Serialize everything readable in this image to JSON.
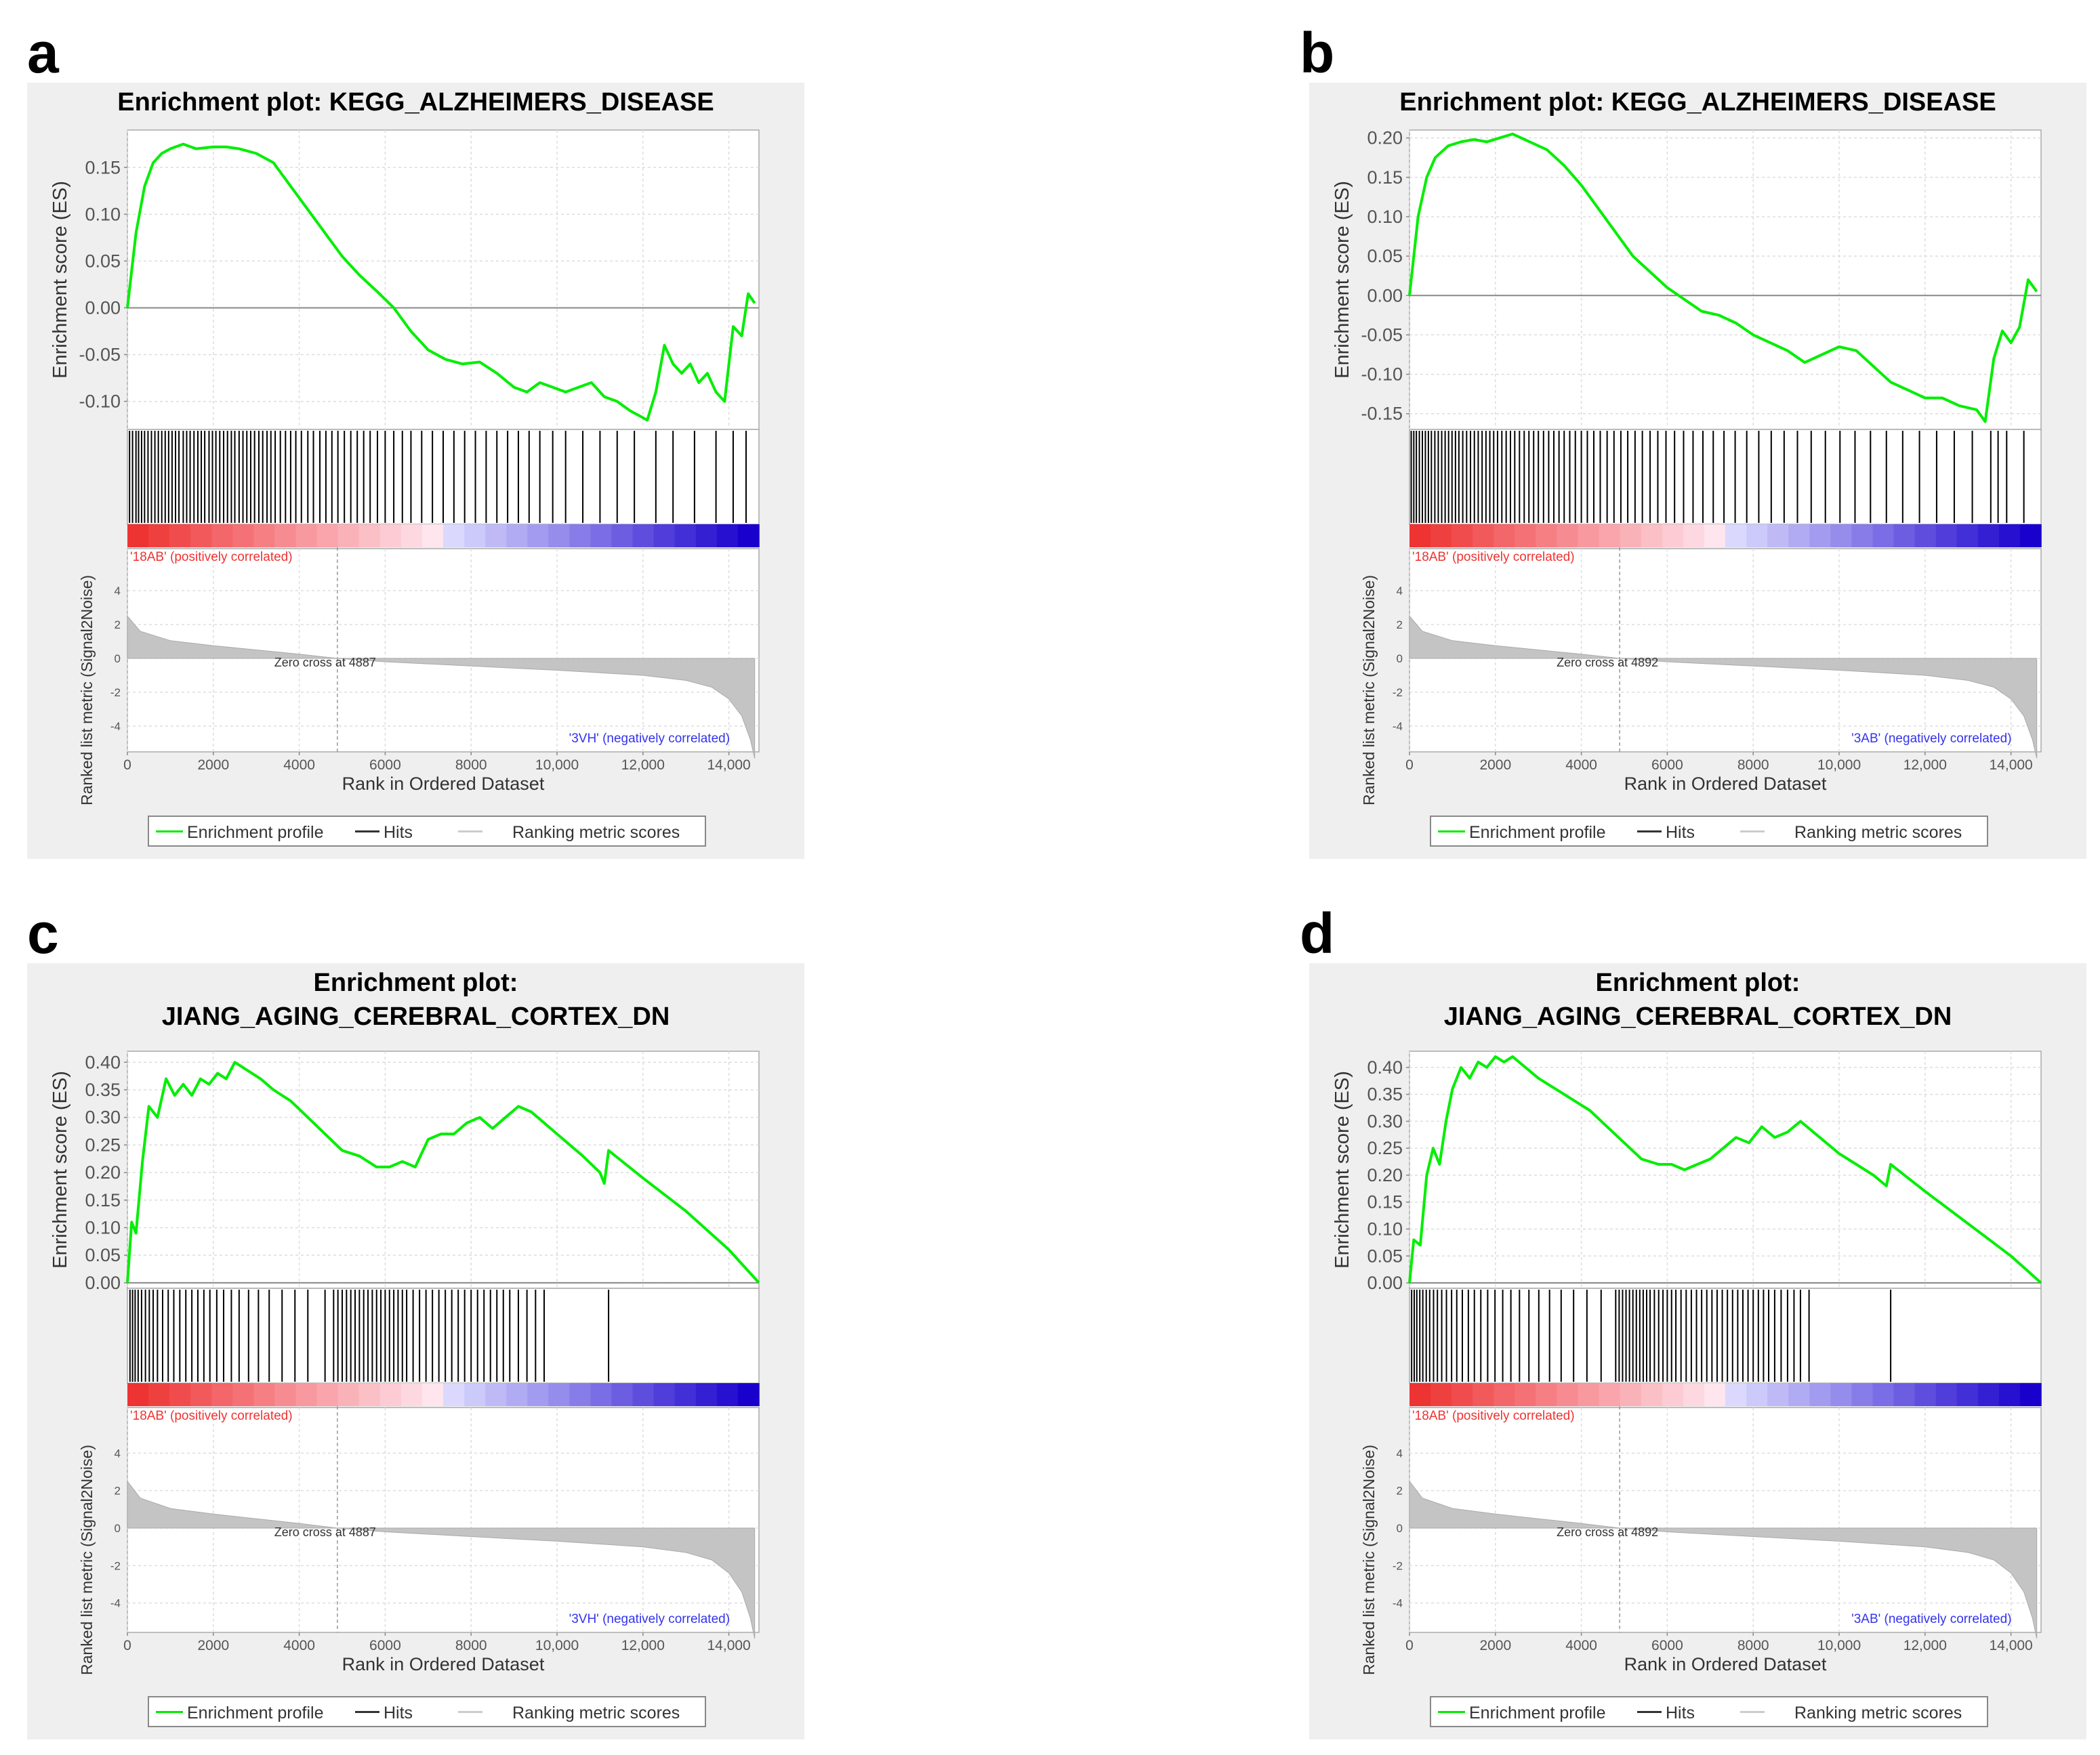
{
  "figure": {
    "legend": {
      "enrichment_profile": "Enrichment profile",
      "hits": "Hits",
      "ranking_metric": "Ranking metric scores"
    },
    "colors": {
      "profile": "#00ee00",
      "hits": "#000000",
      "metric_fill": "#c4c4c4",
      "positive": "#ee3333",
      "negative": "#1a00cc",
      "positive_label": "#ee3333",
      "negative_label": "#3333ee"
    }
  },
  "chart_data": [
    {
      "panel_label": "a",
      "type": "line",
      "title_lines": [
        "Enrichment plot: KEGG_ALZHEIMERS_DISEASE"
      ],
      "ylabel": "Enrichment score (ES)",
      "ylabel2": "Ranked list metric (Signal2Noise)",
      "xlabel": "Rank in Ordered Dataset",
      "xlim": [
        0,
        14700
      ],
      "ylim": [
        -0.13,
        0.19
      ],
      "yticks": [
        0.15,
        0.1,
        0.05,
        0.0,
        -0.05,
        -0.1
      ],
      "ytick_labels": [
        "0.15",
        "0.10",
        "0.05",
        "0.00",
        "-0.05",
        "-0.10"
      ],
      "xticks": [
        0,
        2000,
        4000,
        6000,
        8000,
        10000,
        12000,
        14000
      ],
      "xtick_labels": [
        "0",
        "2000",
        "4000",
        "6000",
        "8000",
        "10,000",
        "12,000",
        "14,000"
      ],
      "metric_ylim": [
        -6,
        6
      ],
      "metric_yticks": [
        4,
        2,
        0,
        -2,
        -4
      ],
      "metric_ytick_labels": [
        "4",
        "2",
        "0",
        "-2",
        "-4"
      ],
      "zero_cross": 4887,
      "zero_cross_label": "Zero cross at 4887",
      "positive_label": "'18AB' (positively correlated)",
      "negative_label": "'3VH' (negatively correlated)",
      "es_x": [
        0,
        200,
        400,
        600,
        800,
        1000,
        1300,
        1600,
        2000,
        2300,
        2600,
        3000,
        3400,
        3800,
        4200,
        4600,
        5000,
        5400,
        5800,
        6200,
        6600,
        7000,
        7400,
        7800,
        8200,
        8600,
        9000,
        9300,
        9600,
        9900,
        10200,
        10500,
        10800,
        11100,
        11400,
        11700,
        11900,
        12100,
        12300,
        12500,
        12700,
        12900,
        13100,
        13300,
        13500,
        13700,
        13900,
        14100,
        14300,
        14450,
        14600
      ],
      "es_y": [
        0.0,
        0.08,
        0.13,
        0.155,
        0.165,
        0.17,
        0.175,
        0.17,
        0.172,
        0.172,
        0.17,
        0.165,
        0.155,
        0.13,
        0.105,
        0.08,
        0.055,
        0.035,
        0.018,
        0.0,
        -0.025,
        -0.045,
        -0.055,
        -0.06,
        -0.058,
        -0.07,
        -0.085,
        -0.09,
        -0.08,
        -0.085,
        -0.09,
        -0.085,
        -0.08,
        -0.095,
        -0.1,
        -0.11,
        -0.115,
        -0.12,
        -0.09,
        -0.04,
        -0.06,
        -0.07,
        -0.06,
        -0.08,
        -0.07,
        -0.09,
        -0.1,
        -0.02,
        -0.03,
        0.015,
        0.005
      ],
      "hits": [
        50,
        120,
        200,
        260,
        330,
        400,
        480,
        560,
        640,
        720,
        800,
        880,
        960,
        1040,
        1120,
        1200,
        1300,
        1380,
        1460,
        1550,
        1640,
        1720,
        1800,
        1900,
        1980,
        2060,
        2150,
        2240,
        2330,
        2420,
        2500,
        2600,
        2690,
        2780,
        2870,
        2960,
        3060,
        3150,
        3250,
        3340,
        3440,
        3560,
        3680,
        3800,
        3920,
        4050,
        4200,
        4330,
        4480,
        4620,
        4760,
        4900,
        5050,
        5200,
        5350,
        5500,
        5650,
        5820,
        6000,
        6200,
        6400,
        6600,
        6850,
        7100,
        7350,
        7600,
        7850,
        8100,
        8350,
        8600,
        8850,
        9100,
        9350,
        9600,
        9900,
        10200,
        10600,
        11000,
        11400,
        11800,
        12300,
        12700,
        13200,
        13700,
        14100,
        14400
      ],
      "metric_x": [
        0,
        300,
        1000,
        2000,
        3000,
        4000,
        4887,
        6000,
        8000,
        10000,
        12000,
        13000,
        13600,
        14000,
        14300,
        14500,
        14600
      ],
      "metric_y": [
        2.5,
        1.6,
        1.05,
        0.75,
        0.5,
        0.25,
        0.0,
        -0.2,
        -0.45,
        -0.7,
        -1.0,
        -1.3,
        -1.7,
        -2.4,
        -3.4,
        -4.8,
        -5.9
      ]
    },
    {
      "panel_label": "b",
      "type": "line",
      "title_lines": [
        "Enrichment plot: KEGG_ALZHEIMERS_DISEASE"
      ],
      "ylabel": "Enrichment score (ES)",
      "ylabel2": "Ranked list metric (Signal2Noise)",
      "xlabel": "Rank in Ordered Dataset",
      "xlim": [
        0,
        14700
      ],
      "ylim": [
        -0.17,
        0.21
      ],
      "yticks": [
        0.2,
        0.15,
        0.1,
        0.05,
        0.0,
        -0.05,
        -0.1,
        -0.15
      ],
      "ytick_labels": [
        "0.20",
        "0.15",
        "0.10",
        "0.05",
        "0.00",
        "-0.05",
        "-0.10",
        "-0.15"
      ],
      "xticks": [
        0,
        2000,
        4000,
        6000,
        8000,
        10000,
        12000,
        14000
      ],
      "xtick_labels": [
        "0",
        "2000",
        "4000",
        "6000",
        "8000",
        "10,000",
        "12,000",
        "14,000"
      ],
      "metric_ylim": [
        -6,
        6
      ],
      "metric_yticks": [
        4,
        2,
        0,
        -2,
        -4
      ],
      "metric_ytick_labels": [
        "4",
        "2",
        "0",
        "-2",
        "-4"
      ],
      "zero_cross": 4892,
      "zero_cross_label": "Zero cross at 4892",
      "positive_label": "'18AB' (positively correlated)",
      "negative_label": "'3AB' (negatively correlated)",
      "es_x": [
        0,
        200,
        400,
        600,
        900,
        1200,
        1500,
        1800,
        2100,
        2400,
        2800,
        3200,
        3600,
        4000,
        4400,
        4800,
        5200,
        5600,
        6000,
        6400,
        6800,
        7200,
        7600,
        8000,
        8400,
        8800,
        9200,
        9600,
        10000,
        10400,
        10800,
        11200,
        11600,
        12000,
        12400,
        12800,
        13200,
        13400,
        13600,
        13800,
        14000,
        14200,
        14400,
        14600
      ],
      "es_y": [
        0.0,
        0.1,
        0.15,
        0.175,
        0.19,
        0.195,
        0.198,
        0.195,
        0.2,
        0.205,
        0.195,
        0.185,
        0.165,
        0.14,
        0.11,
        0.08,
        0.05,
        0.03,
        0.01,
        -0.005,
        -0.02,
        -0.025,
        -0.035,
        -0.05,
        -0.06,
        -0.07,
        -0.085,
        -0.075,
        -0.065,
        -0.07,
        -0.09,
        -0.11,
        -0.12,
        -0.13,
        -0.13,
        -0.14,
        -0.145,
        -0.16,
        -0.08,
        -0.045,
        -0.06,
        -0.04,
        0.02,
        0.005
      ],
      "hits": [
        40,
        100,
        160,
        230,
        300,
        370,
        440,
        510,
        590,
        670,
        750,
        830,
        910,
        990,
        1070,
        1150,
        1240,
        1330,
        1420,
        1510,
        1600,
        1690,
        1780,
        1870,
        1960,
        2050,
        2150,
        2250,
        2350,
        2450,
        2560,
        2670,
        2780,
        2890,
        3000,
        3120,
        3240,
        3360,
        3480,
        3600,
        3730,
        3860,
        4000,
        4140,
        4290,
        4440,
        4600,
        4760,
        4920,
        5080,
        5250,
        5420,
        5600,
        5780,
        5970,
        6170,
        6380,
        6600,
        6830,
        7070,
        7320,
        7580,
        7850,
        8130,
        8420,
        8720,
        9030,
        9350,
        9680,
        10020,
        10370,
        10730,
        11100,
        11480,
        11870,
        12270,
        12680,
        13100,
        13530,
        13700,
        13900,
        14300
      ],
      "metric_x": [
        0,
        300,
        1000,
        2000,
        3000,
        4000,
        4892,
        6000,
        8000,
        10000,
        12000,
        13000,
        13600,
        14000,
        14300,
        14500,
        14600
      ],
      "metric_y": [
        2.5,
        1.6,
        1.05,
        0.75,
        0.5,
        0.25,
        0.0,
        -0.2,
        -0.45,
        -0.7,
        -1.0,
        -1.3,
        -1.7,
        -2.4,
        -3.4,
        -4.8,
        -5.9
      ]
    },
    {
      "panel_label": "c",
      "type": "line",
      "title_lines": [
        "Enrichment plot:",
        "JIANG_AGING_CEREBRAL_CORTEX_DN"
      ],
      "ylabel": "Enrichment score (ES)",
      "ylabel2": "Ranked list metric (Signal2Noise)",
      "xlabel": "Rank in Ordered Dataset",
      "xlim": [
        0,
        14700
      ],
      "ylim": [
        -0.01,
        0.42
      ],
      "yticks": [
        0.4,
        0.35,
        0.3,
        0.25,
        0.2,
        0.15,
        0.1,
        0.05,
        0.0
      ],
      "ytick_labels": [
        "0.40",
        "0.35",
        "0.30",
        "0.25",
        "0.20",
        "0.15",
        "0.10",
        "0.05",
        "0.00"
      ],
      "xticks": [
        0,
        2000,
        4000,
        6000,
        8000,
        10000,
        12000,
        14000
      ],
      "xtick_labels": [
        "0",
        "2000",
        "4000",
        "6000",
        "8000",
        "10,000",
        "12,000",
        "14,000"
      ],
      "metric_ylim": [
        -6,
        6
      ],
      "metric_yticks": [
        4,
        2,
        0,
        -2,
        -4
      ],
      "metric_ytick_labels": [
        "4",
        "2",
        "0",
        "-2",
        "-4"
      ],
      "zero_cross": 4887,
      "zero_cross_label": "Zero cross at 4887",
      "positive_label": "'18AB' (positively correlated)",
      "negative_label": "'3VH' (negatively correlated)",
      "es_x": [
        0,
        100,
        200,
        350,
        500,
        700,
        900,
        1100,
        1300,
        1500,
        1700,
        1900,
        2100,
        2300,
        2500,
        2700,
        2900,
        3100,
        3400,
        3800,
        4200,
        4600,
        5000,
        5400,
        5800,
        6100,
        6400,
        6700,
        7000,
        7300,
        7600,
        7900,
        8200,
        8500,
        8800,
        9100,
        9400,
        9700,
        10000,
        10300,
        10600,
        11000,
        11100,
        11200,
        12000,
        13000,
        14000,
        14700
      ],
      "es_y": [
        0.0,
        0.11,
        0.09,
        0.22,
        0.32,
        0.3,
        0.37,
        0.34,
        0.36,
        0.34,
        0.37,
        0.36,
        0.38,
        0.37,
        0.4,
        0.39,
        0.38,
        0.37,
        0.35,
        0.33,
        0.3,
        0.27,
        0.24,
        0.23,
        0.21,
        0.21,
        0.22,
        0.21,
        0.26,
        0.27,
        0.27,
        0.29,
        0.3,
        0.28,
        0.3,
        0.32,
        0.31,
        0.29,
        0.27,
        0.25,
        0.23,
        0.2,
        0.18,
        0.24,
        0.19,
        0.13,
        0.06,
        0.0
      ],
      "hits": [
        60,
        120,
        180,
        250,
        330,
        420,
        510,
        600,
        700,
        820,
        950,
        1080,
        1220,
        1360,
        1500,
        1640,
        1780,
        1920,
        2080,
        2240,
        2420,
        2600,
        2820,
        3050,
        3300,
        3600,
        3900,
        4200,
        4600,
        4800,
        4900,
        5000,
        5100,
        5200,
        5300,
        5400,
        5500,
        5600,
        5700,
        5800,
        5900,
        6000,
        6100,
        6200,
        6300,
        6400,
        6500,
        6650,
        6800,
        6950,
        7100,
        7250,
        7400,
        7550,
        7700,
        7850,
        8000,
        8150,
        8300,
        8450,
        8600,
        8750,
        8900,
        9100,
        9300,
        9500,
        9700,
        11200
      ],
      "metric_x": [
        0,
        300,
        1000,
        2000,
        3000,
        4000,
        4887,
        6000,
        8000,
        10000,
        12000,
        13000,
        13600,
        14000,
        14300,
        14500,
        14600
      ],
      "metric_y": [
        2.5,
        1.6,
        1.05,
        0.75,
        0.5,
        0.25,
        0.0,
        -0.2,
        -0.45,
        -0.7,
        -1.0,
        -1.3,
        -1.7,
        -2.4,
        -3.4,
        -4.8,
        -5.9
      ]
    },
    {
      "panel_label": "d",
      "type": "line",
      "title_lines": [
        "Enrichment plot:",
        "JIANG_AGING_CEREBRAL_CORTEX_DN"
      ],
      "ylabel": "Enrichment score (ES)",
      "ylabel2": "Ranked list metric (Signal2Noise)",
      "xlabel": "Rank in Ordered Dataset",
      "xlim": [
        0,
        14700
      ],
      "ylim": [
        -0.01,
        0.43
      ],
      "yticks": [
        0.4,
        0.35,
        0.3,
        0.25,
        0.2,
        0.15,
        0.1,
        0.05,
        0.0
      ],
      "ytick_labels": [
        "0.40",
        "0.35",
        "0.30",
        "0.25",
        "0.20",
        "0.15",
        "0.10",
        "0.05",
        "0.00"
      ],
      "xticks": [
        0,
        2000,
        4000,
        6000,
        8000,
        10000,
        12000,
        14000
      ],
      "xtick_labels": [
        "0",
        "2000",
        "4000",
        "6000",
        "8000",
        "10,000",
        "12,000",
        "14,000"
      ],
      "metric_ylim": [
        -6,
        6
      ],
      "metric_yticks": [
        4,
        2,
        0,
        -2,
        -4
      ],
      "metric_ytick_labels": [
        "4",
        "2",
        "0",
        "-2",
        "-4"
      ],
      "zero_cross": 4892,
      "zero_cross_label": "Zero cross at 4892",
      "positive_label": "'18AB' (positively correlated)",
      "negative_label": "'3AB' (negatively correlated)",
      "es_x": [
        0,
        100,
        250,
        400,
        550,
        700,
        850,
        1000,
        1200,
        1400,
        1600,
        1800,
        2000,
        2200,
        2400,
        2700,
        3000,
        3400,
        3800,
        4200,
        4600,
        5000,
        5400,
        5800,
        6100,
        6400,
        6700,
        7000,
        7300,
        7600,
        7900,
        8200,
        8500,
        8800,
        9100,
        9400,
        9700,
        10000,
        10400,
        10800,
        11100,
        11200,
        12000,
        13000,
        14000,
        14700
      ],
      "es_y": [
        0.0,
        0.08,
        0.07,
        0.2,
        0.25,
        0.22,
        0.3,
        0.36,
        0.4,
        0.38,
        0.41,
        0.4,
        0.42,
        0.41,
        0.42,
        0.4,
        0.38,
        0.36,
        0.34,
        0.32,
        0.29,
        0.26,
        0.23,
        0.22,
        0.22,
        0.21,
        0.22,
        0.23,
        0.25,
        0.27,
        0.26,
        0.29,
        0.27,
        0.28,
        0.3,
        0.28,
        0.26,
        0.24,
        0.22,
        0.2,
        0.18,
        0.22,
        0.17,
        0.11,
        0.05,
        0.0
      ],
      "hits": [
        50,
        110,
        170,
        240,
        310,
        390,
        470,
        560,
        650,
        750,
        860,
        980,
        1100,
        1230,
        1370,
        1510,
        1660,
        1820,
        1990,
        2170,
        2360,
        2560,
        2780,
        3010,
        3260,
        3530,
        3820,
        4130,
        4460,
        4800,
        4880,
        4960,
        5040,
        5120,
        5200,
        5280,
        5360,
        5440,
        5520,
        5600,
        5700,
        5800,
        5900,
        6000,
        6100,
        6200,
        6320,
        6440,
        6560,
        6680,
        6800,
        6920,
        7040,
        7160,
        7280,
        7400,
        7520,
        7640,
        7760,
        7880,
        8000,
        8120,
        8240,
        8360,
        8500,
        8650,
        8800,
        8950,
        9100,
        9300,
        11200
      ],
      "metric_x": [
        0,
        300,
        1000,
        2000,
        3000,
        4000,
        4892,
        6000,
        8000,
        10000,
        12000,
        13000,
        13600,
        14000,
        14300,
        14500,
        14600
      ],
      "metric_y": [
        2.5,
        1.6,
        1.05,
        0.75,
        0.5,
        0.25,
        0.0,
        -0.2,
        -0.45,
        -0.7,
        -1.0,
        -1.3,
        -1.7,
        -2.4,
        -3.4,
        -4.8,
        -5.9
      ]
    }
  ]
}
